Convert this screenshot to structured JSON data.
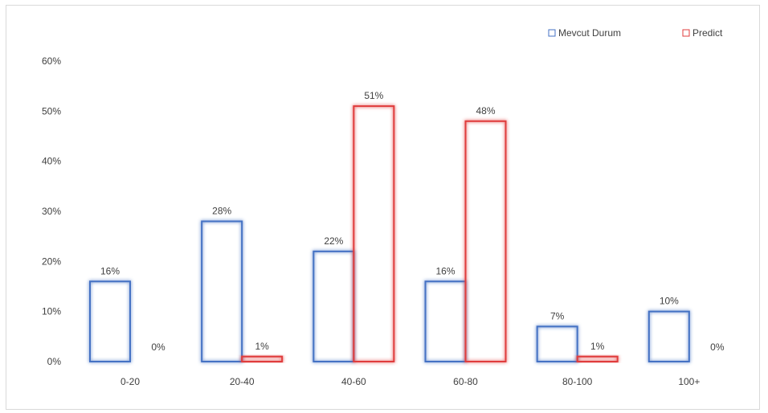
{
  "chart_data": {
    "type": "bar",
    "title": "",
    "xlabel": "",
    "ylabel": "",
    "categories": [
      "0-20",
      "20-40",
      "40-60",
      "60-80",
      "80-100",
      "100+"
    ],
    "ylim": [
      0,
      0.6
    ],
    "yticks": [
      "0%",
      "10%",
      "20%",
      "30%",
      "40%",
      "50%",
      "60%"
    ],
    "series": [
      {
        "name": "Mevcut Durum",
        "color": "#4472c4",
        "values": [
          0.16,
          0.28,
          0.22,
          0.16,
          0.07,
          0.1
        ],
        "labels": [
          "16%",
          "28%",
          "22%",
          "16%",
          "7%",
          "10%"
        ]
      },
      {
        "name": "Predict",
        "color": "#e03c3c",
        "values": [
          0.0,
          0.01,
          0.51,
          0.48,
          0.01,
          0.0
        ],
        "labels": [
          "0%",
          "1%",
          "51%",
          "48%",
          "1%",
          "0%"
        ]
      }
    ],
    "bar_style": "outline-glow",
    "grid": false,
    "legend_position": "top-right"
  }
}
